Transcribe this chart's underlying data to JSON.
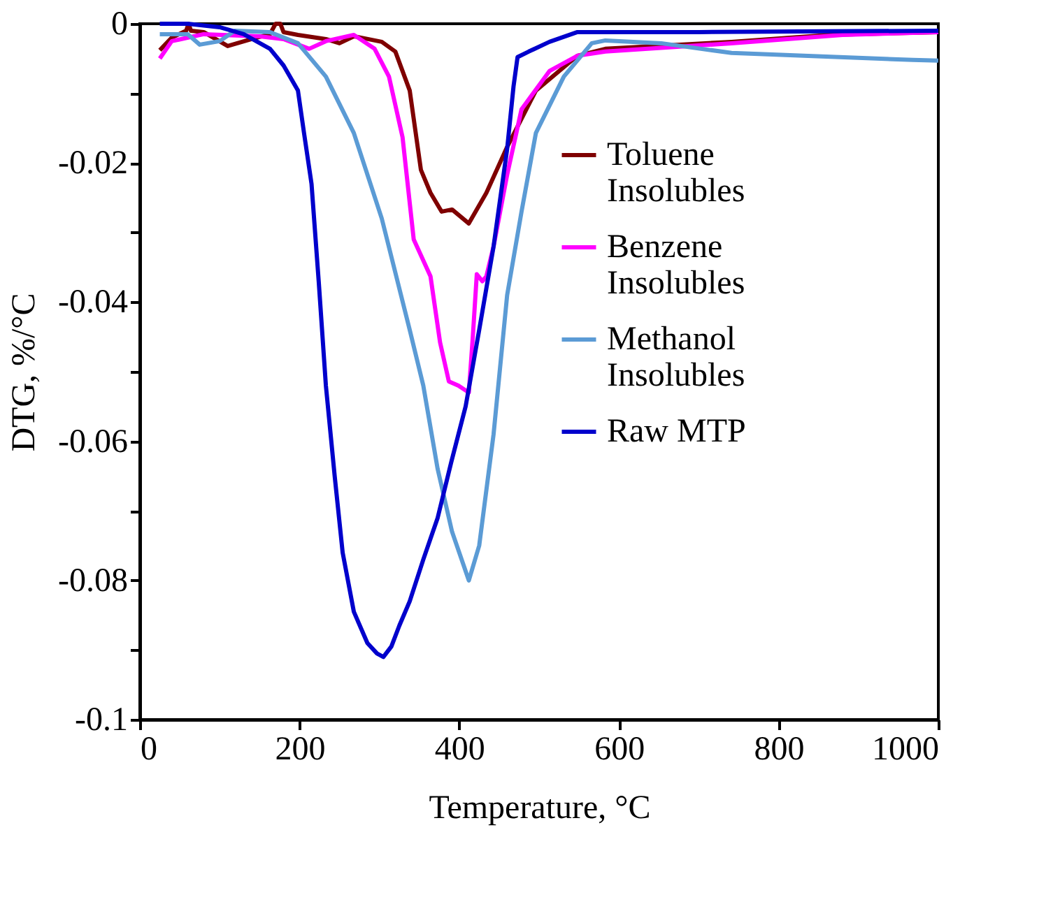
{
  "chart_data": {
    "type": "line",
    "xlabel": "Temperature, °C",
    "ylabel": "DTG, %/°C",
    "xlim": [
      0,
      1000
    ],
    "xticks": [
      0,
      200,
      400,
      600,
      800,
      1000
    ],
    "ylim": [
      -0.1,
      0.0
    ],
    "yticks": [
      {
        "value": -0.1,
        "label": "-0.1"
      },
      {
        "value": -0.09,
        "label": null
      },
      {
        "value": -0.08,
        "label": "-0.08"
      },
      {
        "value": -0.07,
        "label": null
      },
      {
        "value": -0.06,
        "label": "-0.06"
      },
      {
        "value": -0.05,
        "label": null
      },
      {
        "value": -0.04,
        "label": "-0.04"
      },
      {
        "value": -0.03,
        "label": null
      },
      {
        "value": -0.02,
        "label": "-0.02"
      },
      {
        "value": -0.01,
        "label": null
      },
      {
        "value": 0,
        "label": "0"
      }
    ],
    "grid": false,
    "legend": "right",
    "marker": "none",
    "line_style": "solid",
    "series": [
      {
        "name": "Toluene Insolubles",
        "color": "#7f0000",
        "x": [
          25,
          40,
          58,
          61,
          64,
          80,
          110,
          140,
          163,
          170,
          176,
          180,
          198,
          233,
          250,
          268,
          303,
          320,
          338,
          352,
          364,
          378,
          391,
          412,
          434,
          460,
          496,
          548,
          583,
          741,
          863,
          1000
        ],
        "values": [
          -0.0038,
          -0.002,
          -0.001,
          0.0,
          -0.001,
          -0.0012,
          -0.0032,
          -0.0022,
          -0.0015,
          0.0,
          0.0,
          -0.0012,
          -0.0016,
          -0.0022,
          -0.0028,
          -0.0018,
          -0.0026,
          -0.004,
          -0.0096,
          -0.021,
          -0.0243,
          -0.027,
          -0.0267,
          -0.0287,
          -0.0243,
          -0.0177,
          -0.0096,
          -0.0046,
          -0.0036,
          -0.0026,
          -0.0016,
          -0.0012
        ]
      },
      {
        "name": "Benzene Insolubles",
        "color": "#ff00ff",
        "x": [
          25,
          40,
          80,
          150,
          180,
          212,
          233,
          268,
          294,
          312,
          329,
          343,
          364,
          376,
          387,
          399,
          412,
          417,
          422,
          429,
          434,
          443,
          460,
          478,
          513,
          548,
          583,
          741,
          880,
          1000
        ],
        "values": [
          -0.005,
          -0.0025,
          -0.0015,
          -0.0018,
          -0.0022,
          -0.0036,
          -0.0025,
          -0.0016,
          -0.0036,
          -0.0076,
          -0.0163,
          -0.031,
          -0.0363,
          -0.0458,
          -0.0514,
          -0.052,
          -0.053,
          -0.045,
          -0.036,
          -0.037,
          -0.0363,
          -0.032,
          -0.0217,
          -0.0123,
          -0.0068,
          -0.0046,
          -0.004,
          -0.0028,
          -0.0016,
          -0.0012
        ]
      },
      {
        "name": "Methanol Insolubles",
        "color": "#5b9bd5",
        "x": [
          25,
          60,
          75,
          100,
          119,
          163,
          198,
          233,
          268,
          303,
          338,
          355,
          373,
          391,
          412,
          425,
          443,
          460,
          478,
          496,
          531,
          566,
          583,
          653,
          741,
          968,
          1000
        ],
        "values": [
          -0.0015,
          -0.0015,
          -0.003,
          -0.0025,
          -0.001,
          -0.0012,
          -0.0028,
          -0.0076,
          -0.0157,
          -0.028,
          -0.044,
          -0.052,
          -0.064,
          -0.073,
          -0.08,
          -0.075,
          -0.059,
          -0.039,
          -0.027,
          -0.0157,
          -0.0076,
          -0.0028,
          -0.0024,
          -0.0028,
          -0.0042,
          -0.0052,
          -0.0053
        ]
      },
      {
        "name": "Raw MTP",
        "color": "#0000cc",
        "x": [
          25,
          60,
          100,
          130,
          163,
          180,
          198,
          206,
          215,
          224,
          233,
          244,
          254,
          268,
          285,
          297,
          305,
          315,
          325,
          338,
          355,
          373,
          390,
          408,
          425,
          443,
          460,
          468,
          473,
          487,
          513,
          548,
          700,
          1000
        ],
        "values": [
          0.0,
          0.0,
          -0.0005,
          -0.0015,
          -0.0036,
          -0.006,
          -0.0096,
          -0.016,
          -0.023,
          -0.037,
          -0.052,
          -0.065,
          -0.076,
          -0.0845,
          -0.089,
          -0.0905,
          -0.091,
          -0.0895,
          -0.0865,
          -0.083,
          -0.077,
          -0.071,
          -0.063,
          -0.055,
          -0.044,
          -0.032,
          -0.018,
          -0.009,
          -0.0048,
          -0.004,
          -0.0026,
          -0.0012,
          -0.0012,
          -0.001
        ]
      }
    ]
  }
}
